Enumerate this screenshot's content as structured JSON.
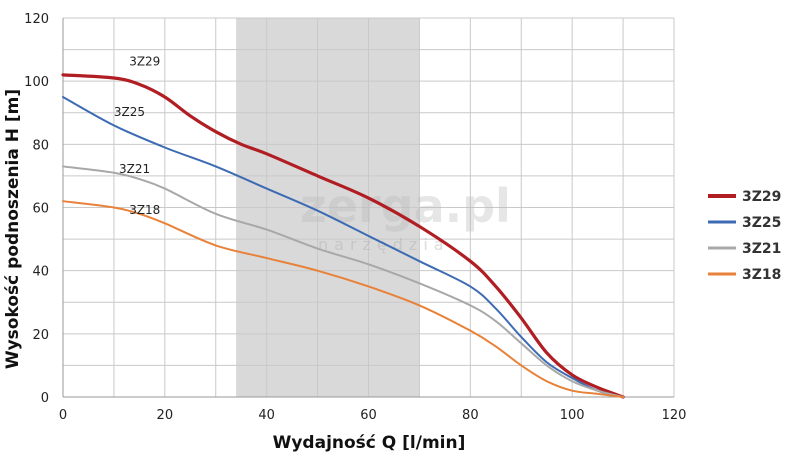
{
  "chart_data": {
    "type": "line",
    "title": "",
    "xlabel": "Wydajność Q [l/min]",
    "ylabel": "Wysokość podnoszenia H [m]",
    "xlim": [
      0,
      120
    ],
    "ylim": [
      0,
      120
    ],
    "x_ticks": [
      "0",
      "20",
      "40",
      "60",
      "80",
      "100",
      "120"
    ],
    "y_ticks": [
      "0",
      "20",
      "40",
      "60",
      "80",
      "100",
      "120"
    ],
    "grid": true,
    "legend_position": "right",
    "highlight_range": [
      34,
      70
    ],
    "highlight_color": "#d9d9d9",
    "series": [
      {
        "name": "3Z29",
        "color": "#b01e23",
        "label": "3Z29",
        "x": [
          0,
          10,
          15,
          20,
          25,
          30,
          35,
          40,
          50,
          60,
          70,
          80,
          85,
          90,
          95,
          100,
          105,
          110
        ],
        "y": [
          102,
          101,
          99,
          95,
          89,
          84,
          80,
          77,
          70,
          63,
          54,
          43,
          35,
          25,
          14,
          7,
          3,
          0
        ]
      },
      {
        "name": "3Z25",
        "color": "#3c6bb3",
        "label": "3Z25",
        "x": [
          0,
          10,
          20,
          30,
          40,
          50,
          60,
          70,
          80,
          85,
          90,
          95,
          100,
          105,
          110
        ],
        "y": [
          95,
          86,
          79,
          73,
          66,
          59,
          51,
          43,
          35,
          28,
          19,
          11,
          6,
          2,
          0
        ]
      },
      {
        "name": "3Z21",
        "color": "#a8a8a8",
        "label": "3Z21",
        "x": [
          0,
          10,
          15,
          20,
          30,
          40,
          50,
          60,
          70,
          80,
          85,
          90,
          95,
          100,
          105,
          110
        ],
        "y": [
          73,
          71,
          69,
          66,
          58,
          53,
          47,
          42,
          36,
          29,
          24,
          17,
          10,
          5,
          2,
          0
        ]
      },
      {
        "name": "3Z18",
        "color": "#e8823a",
        "label": "3Z18",
        "x": [
          0,
          10,
          15,
          20,
          30,
          40,
          50,
          60,
          70,
          80,
          85,
          90,
          95,
          100,
          105,
          110
        ],
        "y": [
          62,
          60,
          58,
          55,
          48,
          44,
          40,
          35,
          29,
          21,
          16,
          10,
          5,
          2,
          1,
          0
        ]
      }
    ]
  },
  "watermark": {
    "main": "zerga.pl",
    "sub": "narzędzia"
  }
}
